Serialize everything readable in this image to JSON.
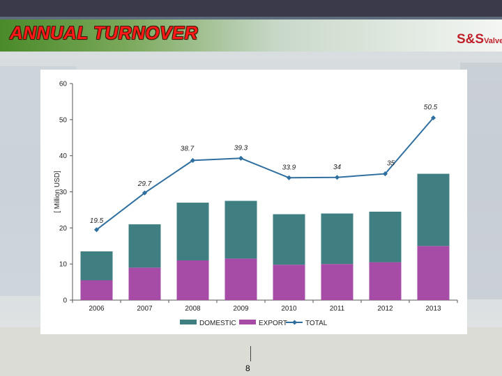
{
  "slide": {
    "title": "ANNUAL TURNOVER",
    "logo_main": "S&S",
    "logo_sub": "Valve",
    "page_number": "8"
  },
  "colors": {
    "domestic": "#3f7f82",
    "export": "#a64ca6",
    "total": "#2f6f9f"
  },
  "chart_data": {
    "type": "bar",
    "stacked": true,
    "categories": [
      "2006",
      "2007",
      "2008",
      "2009",
      "2010",
      "2011",
      "2012",
      "2013"
    ],
    "ylabel": "[ Million USD]",
    "ylim": [
      0,
      60
    ],
    "yticks": [
      "0",
      "10",
      "20",
      "30",
      "40",
      "50",
      "60"
    ],
    "legend_position": "bottom",
    "series": [
      {
        "name": "DOMESTIC",
        "kind": "bar",
        "values": [
          8,
          12,
          16,
          16,
          14,
          14,
          14,
          20
        ]
      },
      {
        "name": "EXPORT",
        "kind": "bar",
        "values": [
          5.5,
          9,
          11,
          11.5,
          9.8,
          10,
          10.5,
          15
        ]
      },
      {
        "name": "TOTAL",
        "kind": "line",
        "values": [
          19.5,
          29.7,
          38.7,
          39.3,
          33.9,
          34,
          35,
          50.5
        ],
        "labels": [
          "19.5",
          "29.7",
          "38.7",
          "39.3",
          "33.9",
          "34",
          "35",
          "50.5"
        ]
      }
    ]
  }
}
